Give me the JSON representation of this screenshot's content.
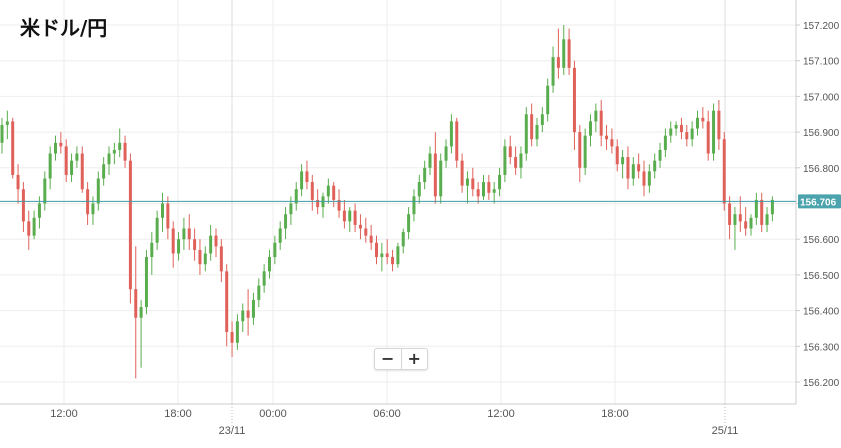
{
  "title": "米ドル/円",
  "zoom": {
    "minus_label": "−",
    "plus_label": "+"
  },
  "chart_data": {
    "type": "candlestick",
    "title": "米ドル/円",
    "y_range": [
      156.15,
      157.25
    ],
    "y_ticks": [
      "157.200",
      "157.100",
      "157.000",
      "156.900",
      "156.800",
      "156.700",
      "156.600",
      "156.500",
      "156.400",
      "156.300",
      "156.200"
    ],
    "current_price": "156.706",
    "x_ticks": [
      "12:00",
      "18:00",
      "00:00",
      "06:00",
      "12:00",
      "18:00"
    ],
    "date_labels": [
      "23/11",
      "25/11"
    ],
    "grid": true,
    "colors": {
      "up": "#5aad4e",
      "down": "#e0605a",
      "doji": "#111111",
      "price_line": "#3d9aa5",
      "price_label_bg": "#4aa3ad",
      "grid": "#eeeeee",
      "axis": "#cccccc",
      "text": "#555555"
    },
    "candles": [
      [
        156.87,
        156.94,
        156.84,
        156.92
      ],
      [
        156.92,
        156.96,
        156.88,
        156.93
      ],
      [
        156.93,
        156.94,
        156.77,
        156.78
      ],
      [
        156.78,
        156.81,
        156.7,
        156.74
      ],
      [
        156.74,
        156.76,
        156.62,
        156.65
      ],
      [
        156.65,
        156.68,
        156.57,
        156.61
      ],
      [
        156.61,
        156.68,
        156.6,
        156.66
      ],
      [
        156.66,
        156.72,
        156.63,
        156.7
      ],
      [
        156.7,
        156.79,
        156.68,
        156.77
      ],
      [
        156.77,
        156.86,
        156.74,
        156.84
      ],
      [
        156.84,
        156.89,
        156.82,
        156.87
      ],
      [
        156.87,
        156.9,
        156.84,
        156.86
      ],
      [
        156.86,
        156.88,
        156.76,
        156.78
      ],
      [
        156.78,
        156.84,
        156.76,
        156.82
      ],
      [
        156.82,
        156.86,
        156.8,
        156.84
      ],
      [
        156.84,
        156.86,
        156.73,
        156.74
      ],
      [
        156.74,
        156.76,
        156.64,
        156.67
      ],
      [
        156.67,
        156.72,
        156.64,
        156.7
      ],
      [
        156.7,
        156.79,
        156.68,
        156.77
      ],
      [
        156.77,
        156.83,
        156.75,
        156.81
      ],
      [
        156.81,
        156.86,
        156.78,
        156.84
      ],
      [
        156.84,
        156.87,
        156.81,
        156.85
      ],
      [
        156.85,
        156.91,
        156.83,
        156.87
      ],
      [
        156.87,
        156.89,
        156.8,
        156.82
      ],
      [
        156.82,
        156.84,
        156.42,
        156.46
      ],
      [
        156.46,
        156.58,
        156.21,
        156.38
      ],
      [
        156.38,
        156.43,
        156.24,
        156.41
      ],
      [
        156.41,
        156.57,
        156.39,
        156.55
      ],
      [
        156.55,
        156.62,
        156.5,
        156.59
      ],
      [
        156.59,
        156.68,
        156.57,
        156.66
      ],
      [
        156.66,
        156.73,
        156.62,
        156.7
      ],
      [
        156.7,
        156.72,
        156.6,
        156.63
      ],
      [
        156.63,
        156.65,
        156.52,
        156.56
      ],
      [
        156.56,
        156.62,
        156.54,
        156.6
      ],
      [
        156.6,
        156.66,
        156.57,
        156.63
      ],
      [
        156.63,
        156.67,
        156.57,
        156.6
      ],
      [
        156.6,
        156.63,
        156.54,
        156.57
      ],
      [
        156.57,
        156.6,
        156.5,
        156.53
      ],
      [
        156.53,
        156.58,
        156.51,
        156.56
      ],
      [
        156.56,
        156.64,
        156.54,
        156.61
      ],
      [
        156.61,
        156.63,
        156.55,
        156.58
      ],
      [
        156.58,
        156.6,
        156.48,
        156.51
      ],
      [
        156.51,
        156.53,
        156.3,
        156.34
      ],
      [
        156.34,
        156.37,
        156.27,
        156.31
      ],
      [
        156.31,
        156.39,
        156.29,
        156.37
      ],
      [
        156.37,
        156.42,
        156.34,
        156.4
      ],
      [
        156.4,
        156.46,
        156.33,
        156.38
      ],
      [
        156.38,
        156.45,
        156.36,
        156.43
      ],
      [
        156.43,
        156.49,
        156.41,
        156.47
      ],
      [
        156.47,
        156.53,
        156.45,
        156.51
      ],
      [
        156.51,
        156.57,
        156.49,
        156.55
      ],
      [
        156.55,
        156.61,
        156.53,
        156.59
      ],
      [
        156.59,
        156.65,
        156.57,
        156.63
      ],
      [
        156.63,
        156.69,
        156.6,
        156.67
      ],
      [
        156.67,
        156.72,
        156.64,
        156.7
      ],
      [
        156.7,
        156.76,
        156.68,
        156.74
      ],
      [
        156.74,
        156.81,
        156.72,
        156.79
      ],
      [
        156.79,
        156.82,
        156.74,
        156.76
      ],
      [
        156.76,
        156.78,
        156.68,
        156.71
      ],
      [
        156.71,
        156.74,
        156.67,
        156.69
      ],
      [
        156.69,
        156.73,
        156.66,
        156.72
      ],
      [
        156.72,
        156.77,
        156.7,
        156.75
      ],
      [
        156.75,
        156.76,
        156.69,
        156.71
      ],
      [
        156.71,
        156.74,
        156.66,
        156.68
      ],
      [
        156.68,
        156.71,
        156.63,
        156.65
      ],
      [
        156.65,
        156.69,
        156.62,
        156.68
      ],
      [
        156.68,
        156.7,
        156.62,
        156.64
      ],
      [
        156.64,
        156.67,
        156.6,
        156.63
      ],
      [
        156.63,
        156.66,
        156.59,
        156.61
      ],
      [
        156.61,
        156.64,
        156.57,
        156.59
      ],
      [
        156.59,
        156.61,
        156.53,
        156.55
      ],
      [
        156.55,
        156.59,
        156.51,
        156.56
      ],
      [
        156.56,
        156.6,
        156.53,
        156.55
      ],
      [
        156.55,
        156.57,
        156.51,
        156.53
      ],
      [
        156.53,
        156.59,
        156.52,
        156.58
      ],
      [
        156.58,
        156.63,
        156.56,
        156.62
      ],
      [
        156.62,
        156.69,
        156.6,
        156.67
      ],
      [
        156.67,
        156.74,
        156.65,
        156.72
      ],
      [
        156.72,
        156.78,
        156.7,
        156.76
      ],
      [
        156.76,
        156.82,
        156.74,
        156.8
      ],
      [
        156.8,
        156.86,
        156.78,
        156.84
      ],
      [
        156.84,
        156.9,
        156.7,
        156.72
      ],
      [
        156.72,
        156.84,
        156.7,
        156.82
      ],
      [
        156.82,
        156.88,
        156.8,
        156.86
      ],
      [
        156.86,
        156.95,
        156.84,
        156.93
      ],
      [
        156.93,
        156.94,
        156.8,
        156.82
      ],
      [
        156.82,
        156.84,
        156.73,
        156.75
      ],
      [
        156.75,
        156.79,
        156.7,
        156.77
      ],
      [
        156.77,
        156.8,
        156.72,
        156.74
      ],
      [
        156.74,
        156.76,
        156.7,
        156.72
      ],
      [
        156.72,
        156.78,
        156.71,
        156.76
      ],
      [
        156.76,
        156.78,
        156.71,
        156.73
      ],
      [
        156.73,
        156.76,
        156.7,
        156.74
      ],
      [
        156.74,
        156.8,
        156.72,
        156.78
      ],
      [
        156.78,
        156.88,
        156.76,
        156.86
      ],
      [
        156.86,
        156.89,
        156.81,
        156.83
      ],
      [
        156.83,
        156.86,
        156.78,
        156.8
      ],
      [
        156.8,
        156.86,
        156.77,
        156.84
      ],
      [
        156.84,
        156.97,
        156.82,
        156.95
      ],
      [
        156.95,
        156.98,
        156.86,
        156.88
      ],
      [
        156.88,
        156.94,
        156.86,
        156.92
      ],
      [
        156.92,
        156.97,
        156.9,
        156.95
      ],
      [
        156.95,
        157.05,
        156.93,
        157.03
      ],
      [
        157.03,
        157.14,
        157.01,
        157.11
      ],
      [
        157.11,
        157.19,
        157.05,
        157.08
      ],
      [
        157.08,
        157.2,
        157.06,
        157.16
      ],
      [
        157.16,
        157.19,
        157.06,
        157.08
      ],
      [
        157.08,
        157.1,
        156.85,
        156.9
      ],
      [
        156.9,
        156.92,
        156.76,
        156.8
      ],
      [
        156.8,
        156.91,
        156.78,
        156.89
      ],
      [
        156.89,
        156.95,
        156.86,
        156.93
      ],
      [
        156.93,
        156.98,
        156.9,
        156.96
      ],
      [
        156.96,
        156.99,
        156.86,
        156.89
      ],
      [
        156.89,
        156.92,
        156.85,
        156.88
      ],
      [
        156.88,
        156.91,
        156.84,
        156.86
      ],
      [
        156.86,
        156.88,
        156.79,
        156.81
      ],
      [
        156.81,
        156.85,
        156.77,
        156.83
      ],
      [
        156.83,
        156.86,
        156.74,
        156.77
      ],
      [
        156.77,
        156.83,
        156.75,
        156.81
      ],
      [
        156.81,
        156.84,
        156.77,
        156.79
      ],
      [
        156.79,
        156.82,
        156.72,
        156.75
      ],
      [
        156.75,
        156.81,
        156.73,
        156.79
      ],
      [
        156.79,
        156.84,
        156.77,
        156.82
      ],
      [
        156.82,
        156.87,
        156.8,
        156.85
      ],
      [
        156.85,
        156.91,
        156.83,
        156.89
      ],
      [
        156.89,
        156.93,
        156.87,
        156.91
      ],
      [
        156.91,
        156.93,
        156.89,
        156.92
      ],
      [
        156.92,
        156.94,
        156.88,
        156.9
      ],
      [
        156.9,
        156.92,
        156.86,
        156.88
      ],
      [
        156.88,
        156.93,
        156.86,
        156.91
      ],
      [
        156.91,
        156.96,
        156.89,
        156.94
      ],
      [
        156.94,
        156.97,
        156.91,
        156.93
      ],
      [
        156.93,
        156.96,
        156.82,
        156.84
      ],
      [
        156.84,
        156.98,
        156.82,
        156.96
      ],
      [
        156.96,
        156.99,
        156.85,
        156.88
      ],
      [
        156.88,
        156.9,
        156.68,
        156.7
      ],
      [
        156.7,
        156.72,
        156.6,
        156.64
      ],
      [
        156.64,
        156.69,
        156.57,
        156.67
      ],
      [
        156.67,
        156.72,
        156.62,
        156.65
      ],
      [
        156.65,
        156.69,
        156.61,
        156.63
      ],
      [
        156.63,
        156.67,
        156.61,
        156.66
      ],
      [
        156.66,
        156.73,
        156.64,
        156.71
      ],
      [
        156.71,
        156.73,
        156.62,
        156.64
      ],
      [
        156.64,
        156.69,
        156.62,
        156.67
      ],
      [
        156.67,
        156.72,
        156.65,
        156.71
      ]
    ]
  }
}
